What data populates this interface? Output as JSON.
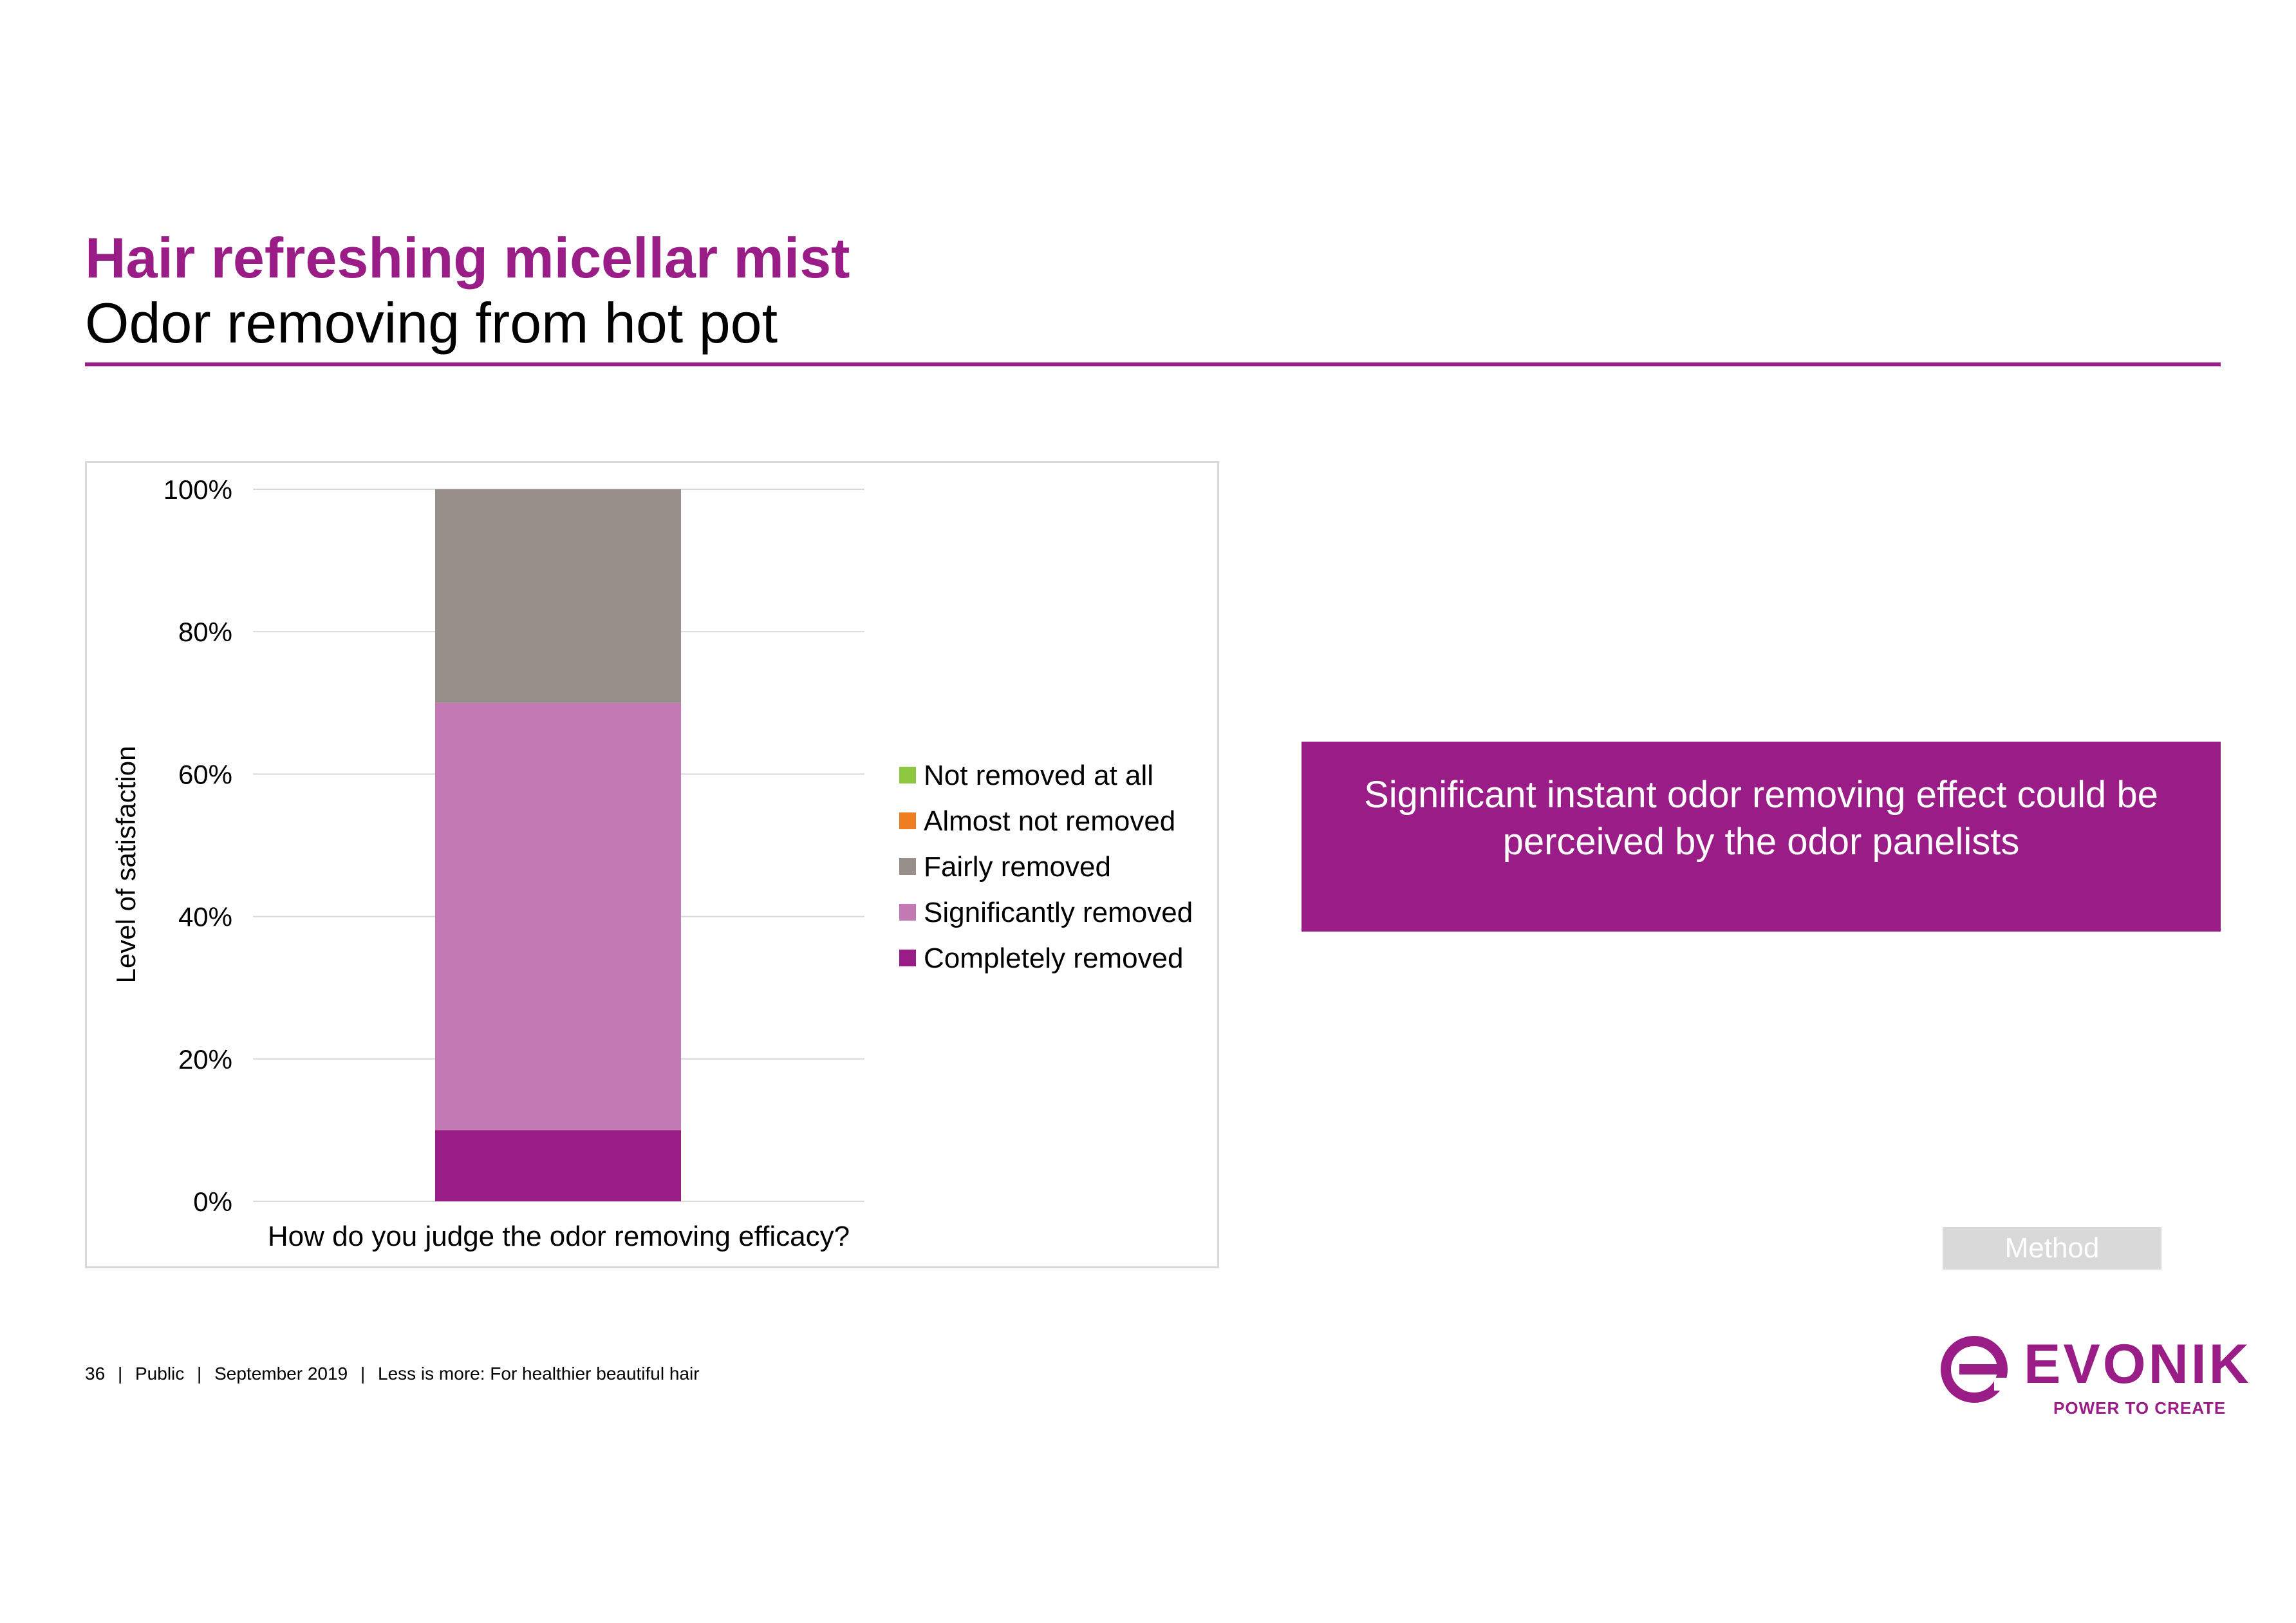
{
  "header": {
    "title": "Hair refreshing micellar mist",
    "subtitle": "Odor removing from hot pot"
  },
  "callout": {
    "text": "Significant instant odor removing effect could be perceived by the odor panelists"
  },
  "method_button": {
    "label": "Method"
  },
  "footer": {
    "page_number": "36",
    "classification": "Public",
    "date": "September 2019",
    "presentation": "Less is more: For healthier beautiful hair"
  },
  "logo": {
    "wordmark": "EVONIK",
    "tagline": "POWER TO CREATE",
    "color": "#9a1c86"
  },
  "chart_data": {
    "type": "bar",
    "stacked": true,
    "title": "",
    "xlabel": "How do you judge the odor removing efficacy?",
    "ylabel": "Level of satisfaction",
    "ylim": [
      0,
      100
    ],
    "yticks": [
      "0%",
      "20%",
      "40%",
      "60%",
      "80%",
      "100%"
    ],
    "ytick_values": [
      0,
      20,
      40,
      60,
      80,
      100
    ],
    "grid": true,
    "legend_position": "right",
    "categories": [
      "How do you judge the odor removing efficacy?"
    ],
    "series": [
      {
        "name": "Completely removed",
        "color": "#9a1c86",
        "values": [
          10
        ]
      },
      {
        "name": "Significantly removed",
        "color": "#c279b4",
        "values": [
          60
        ]
      },
      {
        "name": "Fairly removed",
        "color": "#988f8a",
        "values": [
          30
        ]
      },
      {
        "name": "Almost not removed",
        "color": "#ef7d22",
        "values": [
          0
        ]
      },
      {
        "name": "Not removed at all",
        "color": "#8dc63f",
        "values": [
          0
        ]
      }
    ],
    "legend_order": [
      "Not removed at all",
      "Almost not removed",
      "Fairly removed",
      "Significantly removed",
      "Completely removed"
    ]
  }
}
